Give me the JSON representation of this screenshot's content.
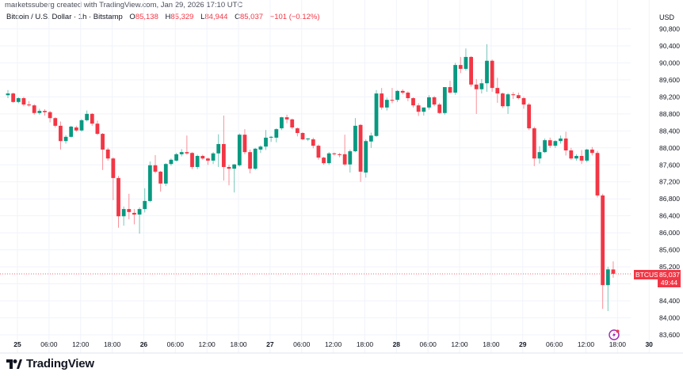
{
  "header": {
    "credit": "marketssuberg created with TradingView.com, Jan 29, 2026 17:10 UTC",
    "symbol_description": "Bitcoin / U.S. Dollar · 1h · Bitstamp",
    "open_label": "O",
    "open": "85,138",
    "high_label": "H",
    "high": "85,329",
    "low_label": "L",
    "low": "84,944",
    "close_label": "C",
    "close": "85,037",
    "change": "−101 (−0.12%)"
  },
  "price_axis": {
    "currency": "USD"
  },
  "price_tag": {
    "symbol": "BTCUSD",
    "price": "85,037",
    "countdown": "49:44"
  },
  "branding": {
    "name": "TradingView"
  },
  "colors": {
    "up": "#089981",
    "down": "#f23645",
    "grid": "#f0f3fa",
    "accent": "#9c27b0"
  },
  "chart_data": {
    "type": "candlestick",
    "symbol": "BTCUSD",
    "interval": "1h",
    "ylim": [
      83400,
      91400
    ],
    "y_ticks": [
      83600,
      84000,
      84400,
      84800,
      85200,
      85600,
      86000,
      86400,
      86800,
      87200,
      87600,
      88000,
      88400,
      88800,
      89200,
      89600,
      90000,
      90400,
      90800
    ],
    "y_tick_labels": [
      "83,600",
      "84,000",
      "84,400",
      "84,800",
      "85,200",
      "85,600",
      "86,000",
      "86,400",
      "86,800",
      "87,200",
      "87,600",
      "88,000",
      "88,400",
      "88,800",
      "89,200",
      "89,600",
      "90,000",
      "90,400",
      "90,800"
    ],
    "x_tick_labels": [
      "25",
      "06:00",
      "12:00",
      "18:00",
      "26",
      "06:00",
      "12:00",
      "18:00",
      "27",
      "06:00",
      "12:00",
      "18:00",
      "28",
      "06:00",
      "12:00",
      "18:00",
      "29",
      "06:00",
      "12:00",
      "18:00",
      "30"
    ],
    "candles": [
      [
        89240,
        89360,
        89170,
        89280
      ],
      [
        89280,
        89300,
        89060,
        89080
      ],
      [
        89080,
        89190,
        89050,
        89170
      ],
      [
        89170,
        89200,
        88980,
        89020
      ],
      [
        89020,
        89100,
        88970,
        89000
      ],
      [
        89000,
        89030,
        88780,
        88820
      ],
      [
        88820,
        88920,
        88780,
        88870
      ],
      [
        88870,
        88910,
        88760,
        88840
      ],
      [
        88840,
        88870,
        88600,
        88700
      ],
      [
        88700,
        88720,
        88480,
        88520
      ],
      [
        88520,
        88620,
        87960,
        88160
      ],
      [
        88160,
        88300,
        88100,
        88260
      ],
      [
        88260,
        88520,
        88240,
        88500
      ],
      [
        88480,
        88520,
        88380,
        88410
      ],
      [
        88410,
        88680,
        88380,
        88650
      ],
      [
        88650,
        88880,
        88620,
        88800
      ],
      [
        88800,
        88820,
        88520,
        88570
      ],
      [
        88570,
        88640,
        88300,
        88330
      ],
      [
        88330,
        88350,
        87480,
        87960
      ],
      [
        87960,
        88000,
        87700,
        87750
      ],
      [
        87750,
        87780,
        86770,
        87290
      ],
      [
        87290,
        87340,
        86120,
        86390
      ],
      [
        86390,
        86620,
        86170,
        86560
      ],
      [
        86560,
        86920,
        86320,
        86490
      ],
      [
        86470,
        86560,
        86200,
        86430
      ],
      [
        86430,
        86600,
        85980,
        86560
      ],
      [
        86560,
        87050,
        86480,
        86750
      ],
      [
        86750,
        87680,
        86720,
        87590
      ],
      [
        87590,
        87830,
        87400,
        87440
      ],
      [
        87440,
        87460,
        86970,
        87160
      ],
      [
        87160,
        87640,
        87100,
        87620
      ],
      [
        87620,
        87750,
        87580,
        87720
      ],
      [
        87700,
        87880,
        87680,
        87850
      ],
      [
        87850,
        87970,
        87800,
        87900
      ],
      [
        87900,
        88290,
        87840,
        87870
      ],
      [
        87880,
        87900,
        87500,
        87550
      ],
      [
        87550,
        87840,
        87500,
        87810
      ],
      [
        87810,
        87840,
        87720,
        87750
      ],
      [
        87750,
        87770,
        87600,
        87700
      ],
      [
        87700,
        87900,
        87620,
        87870
      ],
      [
        87870,
        88320,
        87550,
        88090
      ],
      [
        88090,
        88760,
        87230,
        87550
      ],
      [
        87550,
        87600,
        87120,
        87510
      ],
      [
        87510,
        87620,
        86950,
        87610
      ],
      [
        87590,
        88340,
        87560,
        88310
      ],
      [
        88310,
        88440,
        87850,
        87900
      ],
      [
        87900,
        87960,
        87400,
        87510
      ],
      [
        87510,
        88000,
        87480,
        87980
      ],
      [
        87960,
        88060,
        87880,
        88030
      ],
      [
        88030,
        88420,
        87950,
        88240
      ],
      [
        88240,
        88280,
        88140,
        88260
      ],
      [
        88240,
        88460,
        88130,
        88440
      ],
      [
        88460,
        88730,
        88420,
        88720
      ],
      [
        88720,
        88780,
        88580,
        88670
      ],
      [
        88670,
        88690,
        88440,
        88480
      ],
      [
        88460,
        88480,
        88270,
        88350
      ],
      [
        88350,
        88370,
        88180,
        88200
      ],
      [
        88200,
        88230,
        88160,
        88220
      ],
      [
        88200,
        88240,
        87990,
        88050
      ],
      [
        88050,
        88080,
        87720,
        87770
      ],
      [
        87770,
        87790,
        87600,
        87640
      ],
      [
        87640,
        87900,
        87600,
        87870
      ],
      [
        87870,
        87890,
        87820,
        87850
      ],
      [
        87850,
        87880,
        87780,
        87830
      ],
      [
        87850,
        88310,
        87580,
        87610
      ],
      [
        87610,
        87960,
        87420,
        87920
      ],
      [
        87920,
        88700,
        87900,
        88520
      ],
      [
        88540,
        88560,
        87200,
        87440
      ],
      [
        87420,
        88200,
        87300,
        88160
      ],
      [
        88150,
        88360,
        88000,
        88290
      ],
      [
        88280,
        89360,
        88260,
        89280
      ],
      [
        89280,
        89410,
        88900,
        88950
      ],
      [
        88950,
        89180,
        88880,
        89130
      ],
      [
        89130,
        89410,
        89050,
        89110
      ],
      [
        89130,
        89360,
        89080,
        89340
      ],
      [
        89340,
        89380,
        89260,
        89300
      ],
      [
        89300,
        89330,
        89100,
        89170
      ],
      [
        89170,
        89190,
        88950,
        89000
      ],
      [
        89000,
        89050,
        88750,
        88850
      ],
      [
        88850,
        88950,
        88760,
        88950
      ],
      [
        88950,
        89240,
        88900,
        89190
      ],
      [
        89190,
        89220,
        88980,
        89020
      ],
      [
        89020,
        89060,
        88800,
        88820
      ],
      [
        88820,
        89430,
        88780,
        89430
      ],
      [
        89430,
        89580,
        89280,
        89300
      ],
      [
        89300,
        90000,
        89250,
        89950
      ],
      [
        89950,
        90140,
        89760,
        89860
      ],
      [
        89860,
        90340,
        89820,
        90140
      ],
      [
        90140,
        90160,
        89440,
        89490
      ],
      [
        89490,
        89620,
        88800,
        89380
      ],
      [
        89380,
        89620,
        89280,
        89520
      ],
      [
        89520,
        90440,
        89320,
        90050
      ],
      [
        90050,
        90080,
        89320,
        89410
      ],
      [
        89410,
        89650,
        89060,
        89280
      ],
      [
        89280,
        89300,
        88940,
        88980
      ],
      [
        88980,
        89290,
        88800,
        89260
      ],
      [
        89260,
        89310,
        89150,
        89240
      ],
      [
        89240,
        89300,
        89140,
        89170
      ],
      [
        89170,
        89200,
        88920,
        89020
      ],
      [
        89020,
        89060,
        88420,
        88460
      ],
      [
        88460,
        88500,
        87570,
        87750
      ],
      [
        87750,
        88040,
        87630,
        87900
      ],
      [
        87900,
        88220,
        87880,
        88180
      ],
      [
        88180,
        88240,
        88000,
        88050
      ],
      [
        88050,
        88180,
        88000,
        88160
      ],
      [
        88160,
        88290,
        88100,
        88220
      ],
      [
        88220,
        88380,
        87820,
        87940
      ],
      [
        87940,
        88000,
        87720,
        87750
      ],
      [
        87750,
        87850,
        87700,
        87810
      ],
      [
        87810,
        87950,
        87620,
        87700
      ],
      [
        87700,
        87980,
        87660,
        87960
      ],
      [
        87960,
        88020,
        87820,
        87880
      ],
      [
        87880,
        87930,
        86830,
        86880
      ],
      [
        86880,
        86920,
        84210,
        84770
      ],
      [
        84770,
        85200,
        84160,
        85140
      ],
      [
        85138,
        85329,
        84944,
        85037
      ]
    ]
  }
}
